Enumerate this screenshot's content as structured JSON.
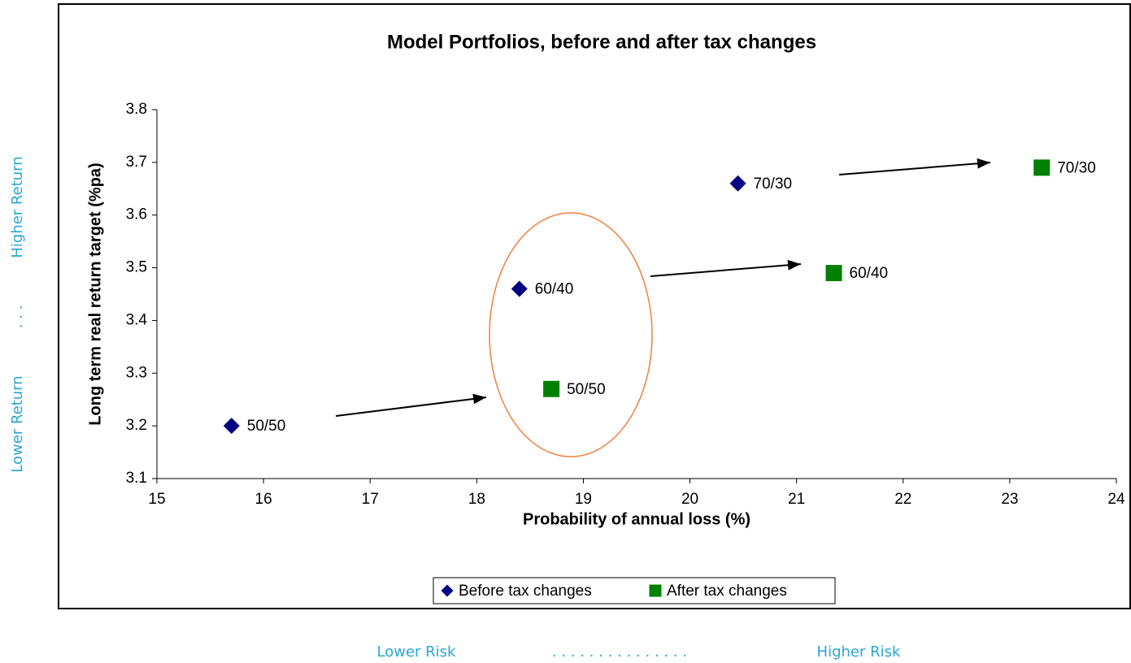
{
  "chart_data": {
    "type": "scatter",
    "title": "Model Portfolios, before and after tax changes",
    "xlabel": "Probability of annual loss (%)",
    "ylabel": "Long term real return target (%pa)",
    "xlim": [
      15,
      24
    ],
    "xticks": [
      15,
      16,
      17,
      18,
      19,
      20,
      21,
      22,
      23,
      24
    ],
    "ylim": [
      3.1,
      3.8
    ],
    "yticks": [
      3.1,
      3.2,
      3.3,
      3.4,
      3.5,
      3.6,
      3.7,
      3.8
    ],
    "series": [
      {
        "name": "Before tax changes",
        "color": "#000080",
        "marker": "diamond",
        "x": [
          15.7,
          18.4,
          20.45
        ],
        "values": [
          3.2,
          3.46,
          3.66
        ],
        "labels": [
          "50/50",
          "60/40",
          "70/30"
        ]
      },
      {
        "name": "After tax changes",
        "color": "#008000",
        "marker": "square",
        "x": [
          18.7,
          21.35,
          23.3
        ],
        "values": [
          3.27,
          3.49,
          3.69
        ],
        "labels": [
          "50/50",
          "60/40",
          "70/30"
        ]
      }
    ],
    "annotations": {
      "left": [
        "Lower Return",
        ". . .",
        "Higher Return"
      ],
      "bottom": [
        "Lower Risk",
        ". . . . . . . . . . . . . . .",
        "Higher Risk"
      ]
    }
  }
}
